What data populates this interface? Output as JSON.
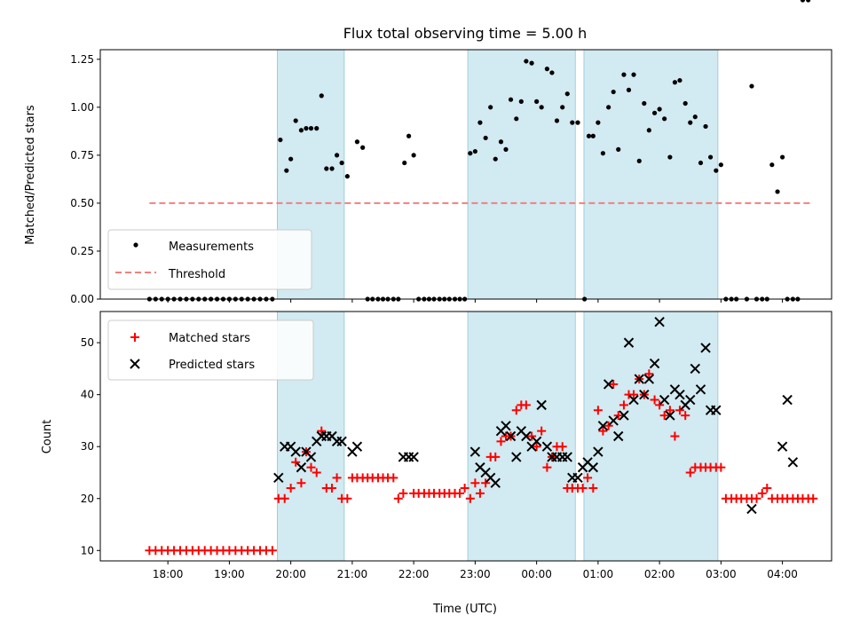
{
  "title": "Flux total observing time = 5.00 h",
  "chart_data": [
    {
      "type": "scatter",
      "ylabel": "Matched/Predicted stars",
      "ylim": [
        0,
        1.3
      ],
      "yticks": [
        "0.00",
        "0.25",
        "0.50",
        "0.75",
        "1.00",
        "1.25"
      ],
      "threshold": 0.5,
      "legend": [
        "Measurements",
        "Threshold"
      ],
      "legend_position": "lower-left",
      "measurements_x_hours": [
        17.7,
        17.8,
        17.9,
        18.0,
        18.1,
        18.2,
        18.3,
        18.4,
        18.5,
        18.6,
        18.7,
        18.8,
        18.9,
        19.0,
        19.1,
        19.2,
        19.3,
        19.4,
        19.5,
        19.6,
        19.7,
        19.83,
        19.93,
        20.0,
        20.08,
        20.17,
        20.25,
        20.33,
        20.42,
        20.5,
        20.58,
        20.67,
        20.75,
        20.83,
        20.92,
        21.08,
        21.17,
        21.25,
        21.33,
        21.42,
        21.5,
        21.58,
        21.67,
        21.75,
        21.85,
        21.92,
        22.0,
        22.08,
        22.17,
        22.25,
        22.33,
        22.42,
        22.5,
        22.58,
        22.67,
        22.75,
        22.83,
        22.92,
        23.0,
        23.08,
        23.17,
        23.25,
        23.33,
        23.42,
        23.5,
        23.58,
        23.67,
        23.75,
        23.83,
        23.92,
        24.0,
        24.08,
        24.17,
        24.25,
        24.33,
        24.42,
        24.5,
        24.58,
        24.67,
        24.78,
        24.85,
        24.92,
        25.0,
        25.08,
        25.17,
        25.25,
        25.33,
        25.42,
        25.5,
        25.58,
        25.67,
        25.75,
        25.83,
        25.92,
        26.0,
        26.08,
        26.17,
        26.25,
        26.33,
        26.42,
        26.5,
        26.58,
        26.67,
        26.75,
        26.83,
        26.92,
        27.0,
        27.08,
        27.17,
        27.25,
        27.42,
        27.5,
        27.58,
        27.67,
        27.75,
        27.83,
        27.92,
        28.0,
        28.08,
        28.17,
        28.25,
        28.33,
        28.42
      ],
      "measurements_y": [
        0,
        0,
        0,
        0,
        0,
        0,
        0,
        0,
        0,
        0,
        0,
        0,
        0,
        0,
        0,
        0,
        0,
        0,
        0,
        0,
        0,
        0.83,
        0.67,
        0.73,
        0.93,
        0.88,
        0.89,
        0.89,
        0.89,
        1.06,
        0.68,
        0.68,
        0.75,
        0.71,
        0.64,
        0.82,
        0.79,
        0,
        0,
        0,
        0,
        0,
        0,
        0,
        0.71,
        0.85,
        0.75,
        0,
        0,
        0,
        0,
        0,
        0,
        0,
        0,
        0,
        0,
        0.76,
        0.77,
        0.92,
        0.84,
        1.0,
        0.73,
        0.82,
        0.78,
        1.04,
        0.94,
        1.03,
        1.24,
        1.23,
        1.03,
        1.0,
        1.2,
        1.18,
        0.93,
        1.0,
        1.07,
        0.92,
        0.92,
        0,
        0.85,
        0.85,
        0.92,
        0.76,
        1.0,
        1.08,
        0.78,
        1.17,
        1.09,
        1.17,
        0.72,
        1.02,
        0.88,
        0.97,
        0.99,
        0.94,
        0.74,
        1.13,
        1.14,
        1.02,
        0.92,
        0.95,
        0.71,
        0.9,
        0.74,
        0.67,
        0.7,
        0,
        0,
        0,
        0,
        1.11,
        0,
        0,
        0,
        0.7,
        0.56,
        0.74,
        0,
        0,
        0
      ],
      "shaded_spans_hours": [
        [
          19.78,
          20.87
        ],
        [
          22.88,
          24.63
        ],
        [
          24.77,
          26.95
        ]
      ]
    },
    {
      "type": "scatter",
      "ylabel": "Count",
      "xlabel": "Time (UTC)",
      "ylim": [
        8,
        56
      ],
      "yticks": [
        "10",
        "20",
        "30",
        "40",
        "50"
      ],
      "xticks": [
        "18:00",
        "19:00",
        "20:00",
        "21:00",
        "22:00",
        "23:00",
        "00:00",
        "01:00",
        "02:00",
        "03:00",
        "04:00"
      ],
      "legend": [
        "Matched stars",
        "Predicted stars"
      ],
      "legend_position": "upper-left",
      "matched_x_hours": [
        17.7,
        17.8,
        17.9,
        18.0,
        18.1,
        18.2,
        18.3,
        18.4,
        18.5,
        18.6,
        18.7,
        18.8,
        18.9,
        19.0,
        19.1,
        19.2,
        19.3,
        19.4,
        19.5,
        19.6,
        19.7,
        19.8,
        19.9,
        20.0,
        20.08,
        20.17,
        20.25,
        20.33,
        20.42,
        20.5,
        20.58,
        20.67,
        20.75,
        20.83,
        20.92,
        21.0,
        21.08,
        21.17,
        21.25,
        21.33,
        21.42,
        21.5,
        21.58,
        21.67,
        21.75,
        21.83,
        22.0,
        22.08,
        22.17,
        22.25,
        22.33,
        22.42,
        22.5,
        22.58,
        22.67,
        22.75,
        22.83,
        22.92,
        23.0,
        23.08,
        23.17,
        23.25,
        23.33,
        23.42,
        23.5,
        23.58,
        23.67,
        23.75,
        23.83,
        23.92,
        24.0,
        24.08,
        24.17,
        24.25,
        24.33,
        24.42,
        24.5,
        24.58,
        24.67,
        24.75,
        24.83,
        24.92,
        25.0,
        25.08,
        25.17,
        25.25,
        25.33,
        25.42,
        25.5,
        25.58,
        25.67,
        25.75,
        25.83,
        25.92,
        26.0,
        26.08,
        26.17,
        26.25,
        26.33,
        26.42,
        26.5,
        26.58,
        26.67,
        26.75,
        26.83,
        26.92,
        27.0,
        27.08,
        27.17,
        27.25,
        27.33,
        27.42,
        27.5,
        27.58,
        27.67,
        27.75,
        27.83,
        27.92,
        28.0,
        28.08,
        28.17,
        28.25,
        28.33,
        28.42,
        28.5
      ],
      "matched_y": [
        10,
        10,
        10,
        10,
        10,
        10,
        10,
        10,
        10,
        10,
        10,
        10,
        10,
        10,
        10,
        10,
        10,
        10,
        10,
        10,
        10,
        20,
        20,
        22,
        27,
        23,
        29,
        26,
        25,
        33,
        22,
        22,
        24,
        20,
        20,
        24,
        24,
        24,
        24,
        24,
        24,
        24,
        24,
        24,
        20,
        21,
        21,
        21,
        21,
        21,
        21,
        21,
        21,
        21,
        21,
        21,
        22,
        20,
        23,
        21,
        23,
        28,
        28,
        31,
        32,
        32,
        37,
        38,
        38,
        32,
        30,
        33,
        26,
        28,
        30,
        30,
        22,
        22,
        22,
        22,
        24,
        22,
        37,
        33,
        34,
        42,
        36,
        38,
        40,
        40,
        43,
        40,
        44,
        39,
        38,
        36,
        37,
        32,
        37,
        36,
        25,
        26,
        26,
        26,
        26,
        26,
        26,
        20,
        20,
        20,
        20,
        20,
        20,
        20,
        21,
        22,
        20,
        20,
        20,
        20,
        20,
        20,
        20,
        20,
        20,
        20,
        20
      ],
      "predicted_x_hours": [
        19.8,
        19.9,
        20.0,
        20.08,
        20.17,
        20.25,
        20.33,
        20.42,
        20.5,
        20.58,
        20.67,
        20.75,
        20.83,
        21.0,
        21.08,
        21.83,
        21.92,
        22.0,
        23.0,
        23.08,
        23.17,
        23.25,
        23.33,
        23.42,
        23.5,
        23.58,
        23.67,
        23.75,
        23.83,
        23.92,
        24.0,
        24.08,
        24.17,
        24.25,
        24.33,
        24.42,
        24.5,
        24.58,
        24.67,
        24.75,
        24.83,
        24.92,
        25.0,
        25.08,
        25.17,
        25.25,
        25.33,
        25.42,
        25.5,
        25.58,
        25.67,
        25.75,
        25.83,
        25.92,
        26.0,
        26.08,
        26.17,
        26.25,
        26.33,
        26.42,
        26.5,
        26.58,
        26.67,
        26.75,
        26.83,
        26.92,
        27.5,
        28.0,
        28.08,
        28.17
      ],
      "predicted_y": [
        24,
        30,
        30,
        29,
        26,
        29,
        28,
        31,
        32,
        32,
        32,
        31,
        31,
        29,
        30,
        28,
        28,
        28,
        29,
        26,
        25,
        24,
        23,
        33,
        34,
        32,
        28,
        33,
        32,
        30,
        31,
        38,
        30,
        28,
        28,
        28,
        28,
        24,
        24,
        26,
        27,
        26,
        29,
        34,
        42,
        35,
        32,
        36,
        50,
        39,
        43,
        40,
        43,
        46,
        54,
        39,
        36,
        41,
        40,
        38,
        39,
        45,
        41,
        49,
        37,
        37,
        18,
        30,
        39,
        27
      ],
      "shaded_spans_hours": [
        [
          19.78,
          20.87
        ],
        [
          22.88,
          24.63
        ],
        [
          24.77,
          26.95
        ]
      ]
    }
  ],
  "colors": {
    "shade": "#add8e6",
    "measurement": "#000000",
    "threshold": "#f08080",
    "matched": "#ff0000",
    "predicted": "#000000"
  }
}
